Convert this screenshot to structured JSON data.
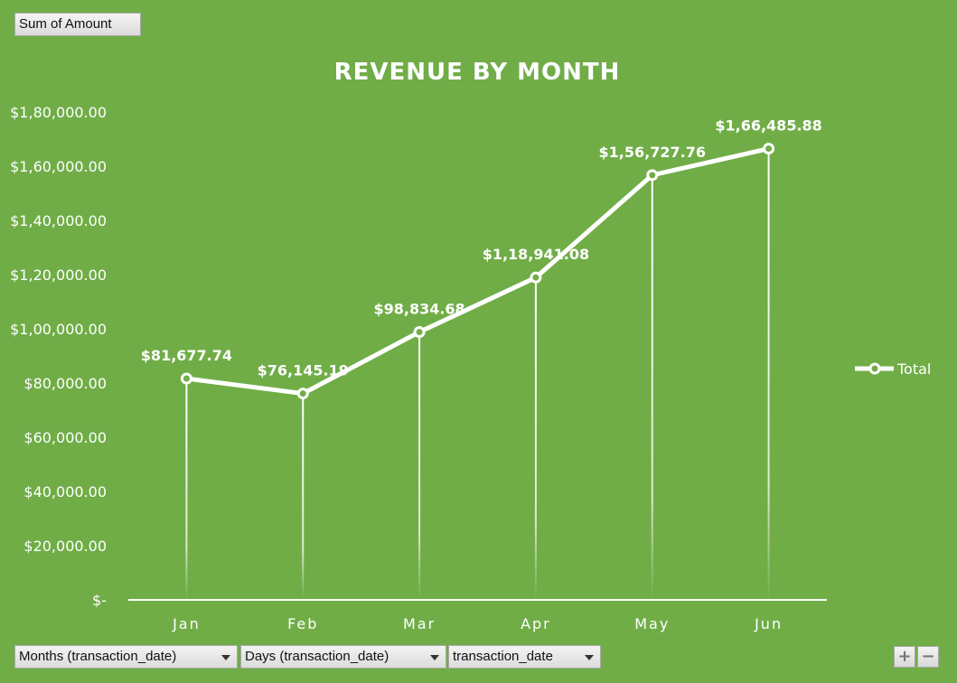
{
  "pivot": {
    "value_field": "Sum of Amount",
    "axis_fields": [
      {
        "label": "Months (transaction_date)"
      },
      {
        "label": "Days (transaction_date)"
      },
      {
        "label": "transaction_date"
      }
    ],
    "expand_label": "+",
    "collapse_label": "−"
  },
  "colors": {
    "background": "#70ad47",
    "series": "#ffffff"
  },
  "chart_data": {
    "type": "line",
    "title": "REVENUE BY MONTH",
    "xlabel": "",
    "ylabel": "",
    "categories": [
      "Jan",
      "Feb",
      "Mar",
      "Apr",
      "May",
      "Jun"
    ],
    "series": [
      {
        "name": "Total",
        "values": [
          81677.74,
          76145.19,
          98834.68,
          118941.08,
          156727.76,
          166485.88
        ],
        "labels": [
          "$81,677.74",
          "$76,145.19",
          "$98,834.68",
          "$1,18,941.08",
          "$1,56,727.76",
          "$1,66,485.88"
        ]
      }
    ],
    "ylim": [
      0,
      180000
    ],
    "y_ticks": [
      0,
      20000,
      40000,
      60000,
      80000,
      100000,
      120000,
      140000,
      160000,
      180000
    ],
    "y_tick_labels": [
      "$-",
      "$20,000.00",
      "$40,000.00",
      "$60,000.00",
      "$80,000.00",
      "$1,00,000.00",
      "$1,20,000.00",
      "$1,40,000.00",
      "$1,60,000.00",
      "$1,80,000.00"
    ],
    "grid": false,
    "drop_lines": true,
    "markers": "hollow-circle",
    "legend": "right"
  }
}
